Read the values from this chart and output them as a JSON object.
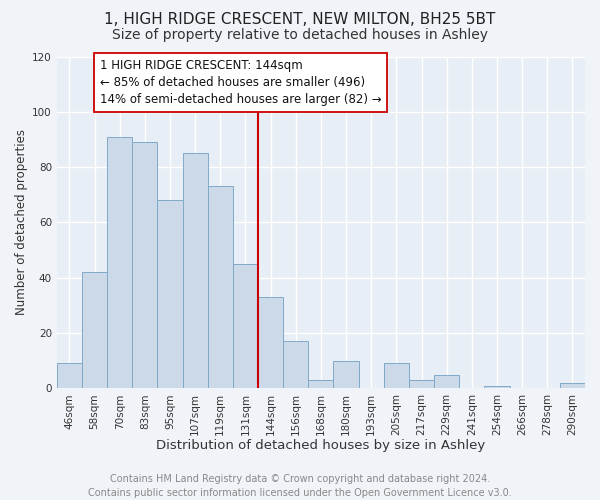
{
  "title": "1, HIGH RIDGE CRESCENT, NEW MILTON, BH25 5BT",
  "subtitle": "Size of property relative to detached houses in Ashley",
  "xlabel": "Distribution of detached houses by size in Ashley",
  "ylabel": "Number of detached properties",
  "bar_labels": [
    "46sqm",
    "58sqm",
    "70sqm",
    "83sqm",
    "95sqm",
    "107sqm",
    "119sqm",
    "131sqm",
    "144sqm",
    "156sqm",
    "168sqm",
    "180sqm",
    "193sqm",
    "205sqm",
    "217sqm",
    "229sqm",
    "241sqm",
    "254sqm",
    "266sqm",
    "278sqm",
    "290sqm"
  ],
  "bar_values": [
    9,
    42,
    91,
    89,
    68,
    85,
    73,
    45,
    33,
    17,
    3,
    10,
    0,
    9,
    3,
    5,
    0,
    1,
    0,
    0,
    2
  ],
  "bar_color": "#ccd9e8",
  "bar_edge_color": "#7faac8",
  "highlight_line_index": 8,
  "highlight_line_color": "#cc0000",
  "annotation_line1": "1 HIGH RIDGE CRESCENT: 144sqm",
  "annotation_line2": "← 85% of detached houses are smaller (496)",
  "annotation_line3": "14% of semi-detached houses are larger (82) →",
  "annotation_box_color": "#ffffff",
  "annotation_box_edge_color": "#cc0000",
  "ylim": [
    0,
    120
  ],
  "yticks": [
    0,
    20,
    40,
    60,
    80,
    100,
    120
  ],
  "footer_text": "Contains HM Land Registry data © Crown copyright and database right 2024.\nContains public sector information licensed under the Open Government Licence v3.0.",
  "bg_color": "#f0f4f8",
  "plot_bg_color": "#e8eef5",
  "grid_color": "#ffffff",
  "title_fontsize": 11,
  "subtitle_fontsize": 10,
  "xlabel_fontsize": 9.5,
  "ylabel_fontsize": 8.5,
  "tick_fontsize": 7.5,
  "annotation_fontsize": 8.5,
  "footer_fontsize": 7
}
